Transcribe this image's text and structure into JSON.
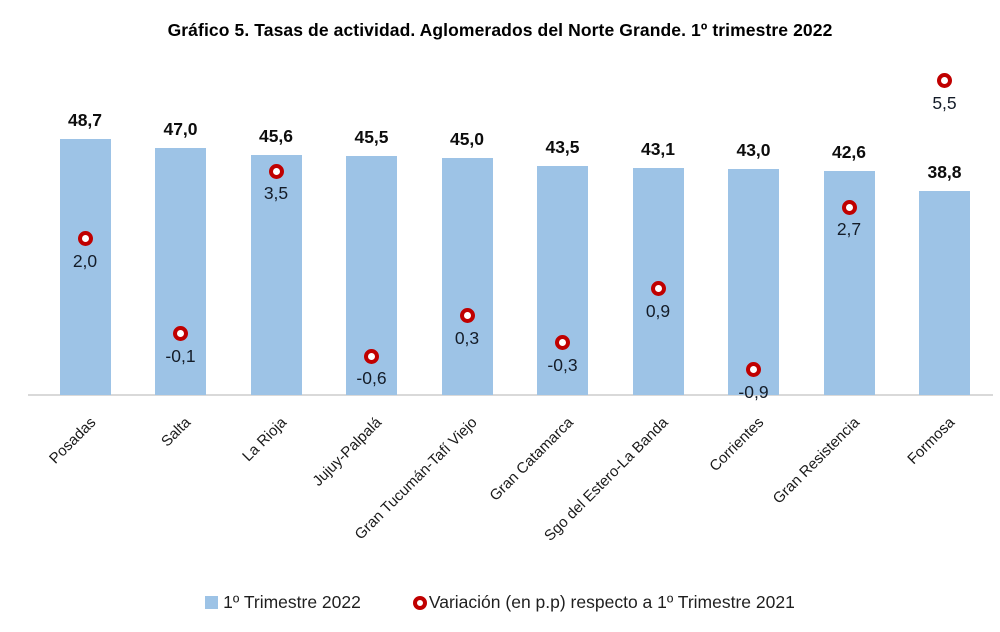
{
  "chart_data": {
    "type": "bar",
    "title": "Gráfico 5. Tasas de actividad. Aglomerados del Norte Grande. 1º trimestre 2022",
    "categories": [
      "Posadas",
      "Salta",
      "La Rioja",
      "Jujuy-Palpalá",
      "Gran Tucumán-Tafí Viejo",
      "Gran Catamarca",
      "Sgo del Estero-La Banda",
      "Corrientes",
      "Gran Resistencia",
      "Formosa"
    ],
    "series": [
      {
        "name": "1º Trimestre 2022",
        "type": "bar",
        "color": "#9DC3E6",
        "values": [
          48.7,
          47.0,
          45.6,
          45.5,
          45.0,
          43.5,
          43.1,
          43.0,
          42.6,
          38.8
        ]
      },
      {
        "name": "Variación (en p.p) respecto a 1º Trimestre 2021",
        "type": "scatter",
        "marker": "ring",
        "color": "#C00000",
        "values": [
          2.0,
          -0.1,
          3.5,
          -0.6,
          0.3,
          -0.3,
          0.9,
          -0.9,
          2.7,
          5.5
        ]
      }
    ],
    "value_label_format": "decimal-comma",
    "xlabel": "",
    "ylabel": "",
    "axes_visible": false,
    "grid": false,
    "data_labels": true,
    "legend_position": "bottom",
    "primary_ylim": [
      0,
      62
    ],
    "secondary_ylim": [
      -1.5,
      5.8
    ]
  }
}
